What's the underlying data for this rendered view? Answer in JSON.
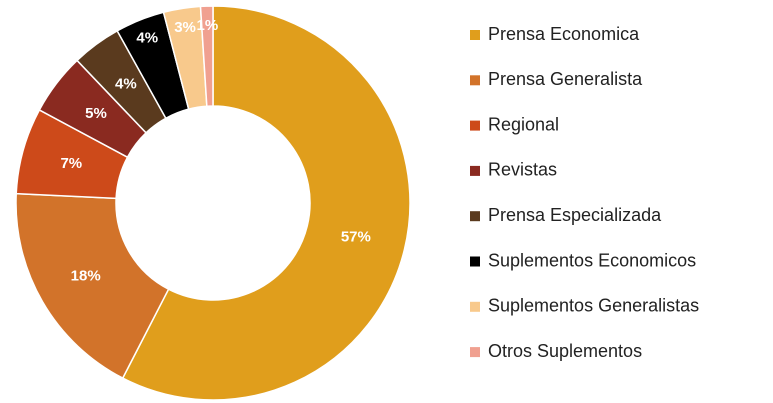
{
  "chart_data": {
    "type": "donut",
    "categories": [
      "Prensa Economica",
      "Prensa Generalista",
      "Regional",
      "Revistas",
      "Prensa Especializada",
      "Suplementos Economicos",
      "Suplementos Generalistas",
      "Otros Suplementos"
    ],
    "values": [
      57,
      18,
      7,
      5,
      4,
      4,
      3,
      1
    ],
    "value_labels": [
      "57%",
      "18%",
      "7%",
      "5%",
      "4%",
      "4%",
      "3%",
      "1%"
    ],
    "colors": [
      "#e09e1c",
      "#d2732a",
      "#cd4a1a",
      "#8a2a20",
      "#5a3a1e",
      "#000000",
      "#f8c98c",
      "#f0a090"
    ],
    "legend": "right"
  }
}
